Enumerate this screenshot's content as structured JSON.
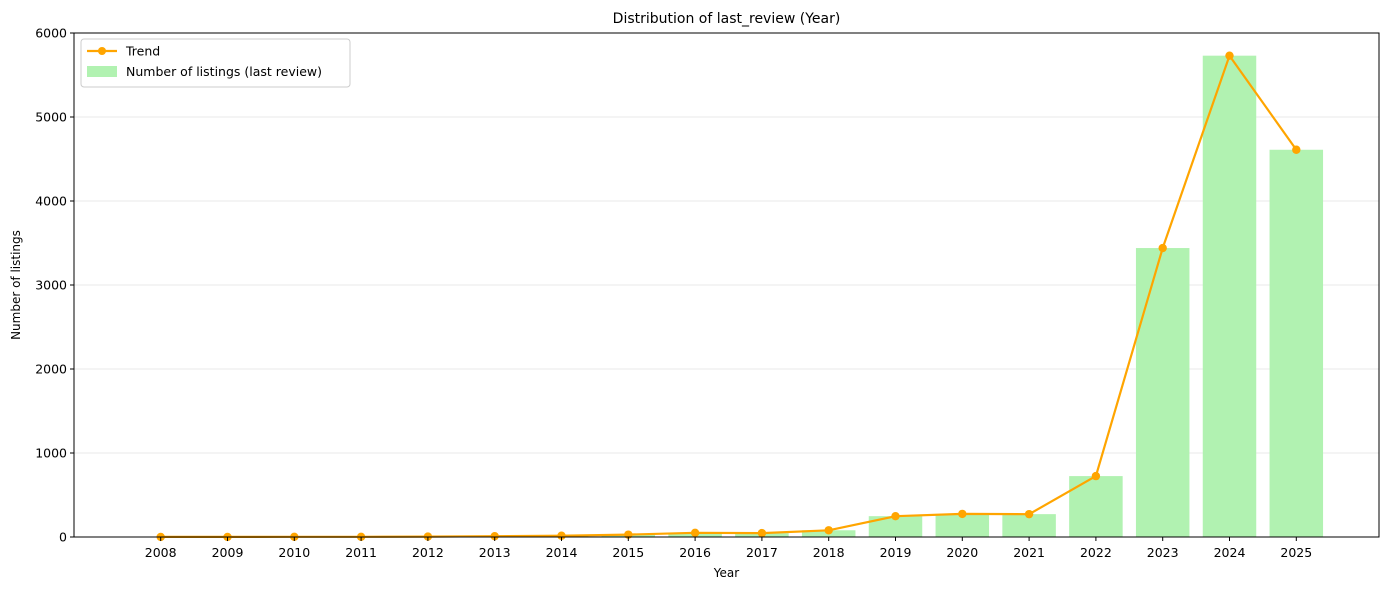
{
  "chart_data": {
    "type": "bar",
    "title": "Distribution of last_review (Year)",
    "xlabel": "Year",
    "ylabel": "Number of listings",
    "categories": [
      "2008",
      "2009",
      "2010",
      "2011",
      "2012",
      "2013",
      "2014",
      "2015",
      "2016",
      "2017",
      "2018",
      "2019",
      "2020",
      "2021",
      "2022",
      "2023",
      "2024",
      "2025"
    ],
    "series": [
      {
        "name": "Number of listings (last review)",
        "kind": "bar",
        "color": "#b1f2b1",
        "values": [
          1,
          1,
          2,
          2,
          5,
          10,
          15,
          28,
          50,
          46,
          80,
          248,
          275,
          272,
          725,
          3440,
          5730,
          4610
        ]
      },
      {
        "name": "Trend",
        "kind": "line",
        "color": "#ffa500",
        "values": [
          1,
          1,
          2,
          2,
          5,
          10,
          15,
          28,
          50,
          46,
          80,
          248,
          275,
          272,
          725,
          3440,
          5730,
          4610
        ]
      }
    ],
    "yticks": [
      0,
      1000,
      2000,
      3000,
      4000,
      5000,
      6000
    ],
    "ylim": [
      0,
      6000
    ],
    "grid": "horizontal",
    "legend_position": "top-left"
  }
}
